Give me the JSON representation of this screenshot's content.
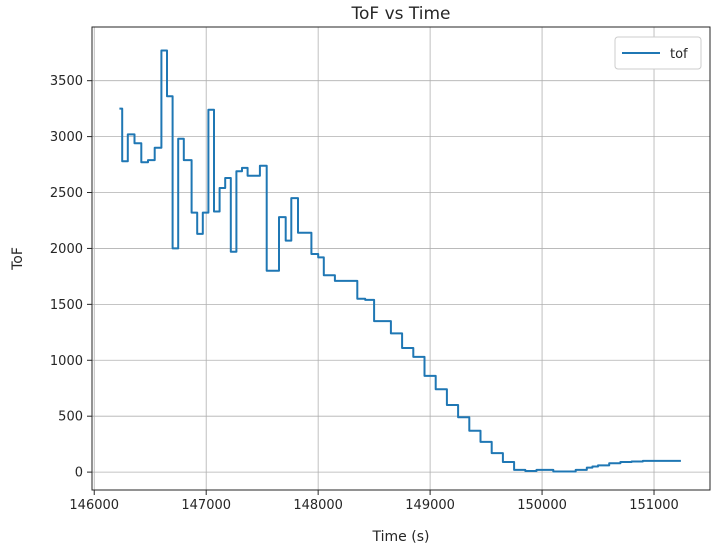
{
  "chart_data": {
    "type": "line",
    "title": "ToF vs Time",
    "xlabel": "Time (s)",
    "ylabel": "ToF",
    "xlim": [
      145980,
      151500
    ],
    "ylim": [
      -160,
      3980
    ],
    "xticks": [
      146000,
      147000,
      148000,
      149000,
      150000,
      151000
    ],
    "yticks": [
      0,
      500,
      1000,
      1500,
      2000,
      2500,
      3000,
      3500
    ],
    "grid": true,
    "legend_position": "top-right",
    "series": [
      {
        "name": "tof",
        "color": "#1f77b4",
        "x": [
          146225,
          146250,
          146300,
          146360,
          146420,
          146480,
          146540,
          146600,
          146650,
          146700,
          146750,
          146800,
          146870,
          146920,
          146970,
          147020,
          147070,
          147120,
          147170,
          147220,
          147270,
          147320,
          147370,
          147420,
          147480,
          147540,
          147600,
          147650,
          147710,
          147760,
          147820,
          147880,
          147940,
          148000,
          148050,
          148100,
          148150,
          148250,
          148350,
          148420,
          148500,
          148570,
          148650,
          148750,
          148850,
          148950,
          149050,
          149150,
          149250,
          149350,
          149450,
          149550,
          149650,
          149750,
          149850,
          149950,
          150100,
          150200,
          150300,
          150350,
          150400,
          150450,
          150500,
          150600,
          150700,
          150800,
          150900,
          151000,
          151100,
          151240
        ],
        "y": [
          3250,
          2780,
          3020,
          2940,
          2770,
          2790,
          2900,
          3770,
          3360,
          2000,
          2980,
          2790,
          2320,
          2130,
          2320,
          3240,
          2330,
          2540,
          2630,
          1970,
          2690,
          2720,
          2650,
          2650,
          2740,
          1800,
          1800,
          2280,
          2070,
          2450,
          2140,
          2140,
          1950,
          1920,
          1760,
          1760,
          1710,
          1710,
          1550,
          1540,
          1350,
          1350,
          1240,
          1110,
          1030,
          860,
          740,
          600,
          490,
          370,
          270,
          170,
          90,
          20,
          10,
          20,
          5,
          5,
          20,
          20,
          40,
          50,
          60,
          80,
          90,
          95,
          100,
          100,
          100,
          100
        ]
      }
    ]
  }
}
